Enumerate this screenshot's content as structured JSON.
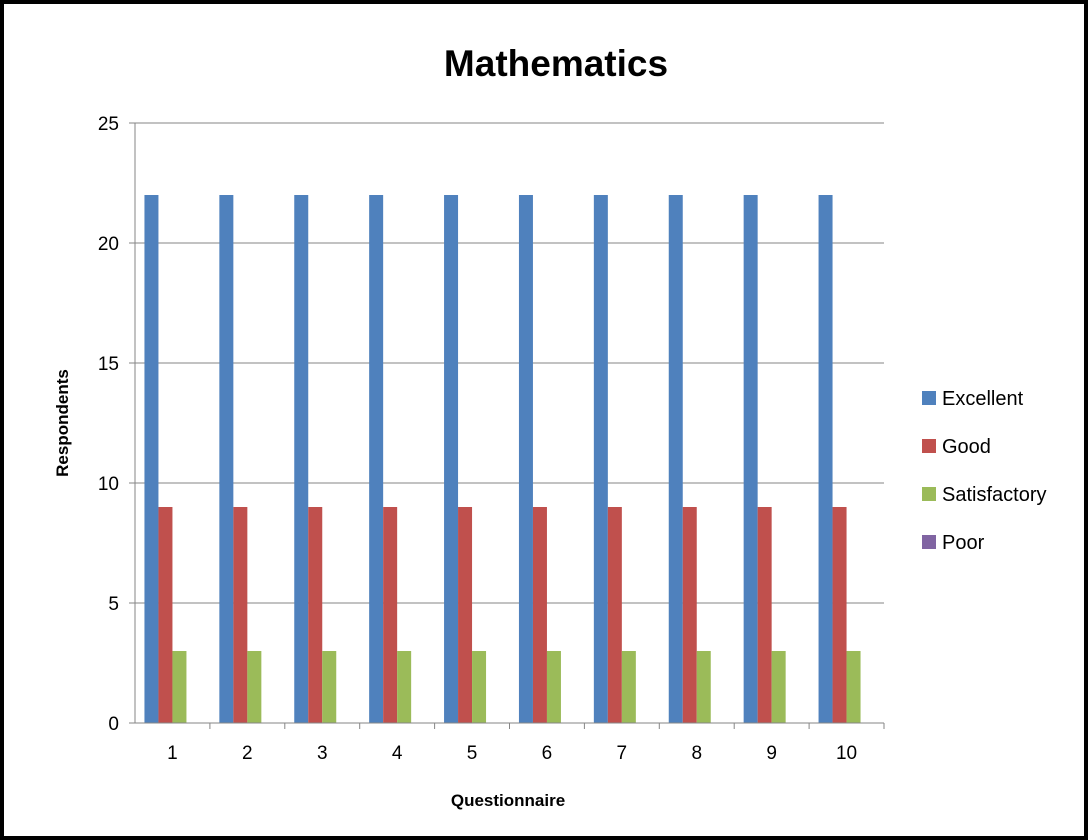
{
  "chart_data": {
    "type": "bar",
    "title": "Mathematics",
    "xlabel": "Questionnaire",
    "ylabel": "Respondents",
    "categories": [
      "1",
      "2",
      "3",
      "4",
      "5",
      "6",
      "7",
      "8",
      "9",
      "10"
    ],
    "ylim": [
      0,
      25
    ],
    "yticks": [
      "0",
      "5",
      "10",
      "15",
      "20",
      "25"
    ],
    "grid": true,
    "legend_position": "right",
    "series": [
      {
        "name": "Excellent",
        "color": "#4F81BD",
        "values": [
          22,
          22,
          22,
          22,
          22,
          22,
          22,
          22,
          22,
          22
        ]
      },
      {
        "name": "Good",
        "color": "#C0504D",
        "values": [
          9,
          9,
          9,
          9,
          9,
          9,
          9,
          9,
          9,
          9
        ]
      },
      {
        "name": "Satisfactory",
        "color": "#9BBB59",
        "values": [
          3,
          3,
          3,
          3,
          3,
          3,
          3,
          3,
          3,
          3
        ]
      },
      {
        "name": "Poor",
        "color": "#8064A2",
        "values": [
          0,
          0,
          0,
          0,
          0,
          0,
          0,
          0,
          0,
          0
        ]
      }
    ]
  }
}
